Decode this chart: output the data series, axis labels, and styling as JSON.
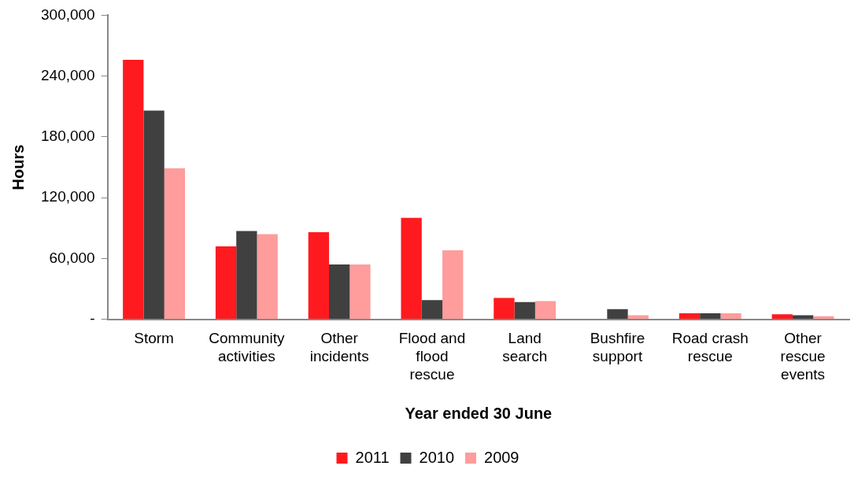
{
  "chart_data": {
    "type": "bar",
    "xlabel": "Year ended 30 June",
    "ylabel": "Hours",
    "categories": [
      "Storm",
      "Community activities",
      "Other incidents",
      "Flood and flood rescue",
      "Land search",
      "Bushfire support",
      "Road crash rescue",
      "Other rescue events"
    ],
    "series": [
      {
        "name": "2011",
        "color": "#ff1a1f",
        "values": [
          256000,
          72000,
          86000,
          100000,
          21000,
          null,
          6000,
          5000
        ]
      },
      {
        "name": "2010",
        "color": "#404040",
        "values": [
          206000,
          87000,
          54000,
          19000,
          17000,
          10000,
          6000,
          4000
        ]
      },
      {
        "name": "2009",
        "color": "#ff9c9c",
        "values": [
          149000,
          84000,
          54000,
          68000,
          18000,
          4000,
          6000,
          3000
        ]
      }
    ],
    "ylim": [
      0,
      300000
    ],
    "yticks": [
      {
        "value": 0,
        "label": "-"
      },
      {
        "value": 60000,
        "label": "60,000"
      },
      {
        "value": 120000,
        "label": "120,000"
      },
      {
        "value": 180000,
        "label": "180,000"
      },
      {
        "value": 240000,
        "label": "240,000"
      },
      {
        "value": 300000,
        "label": "300,000"
      }
    ],
    "grid": false,
    "legend": "bottom"
  }
}
